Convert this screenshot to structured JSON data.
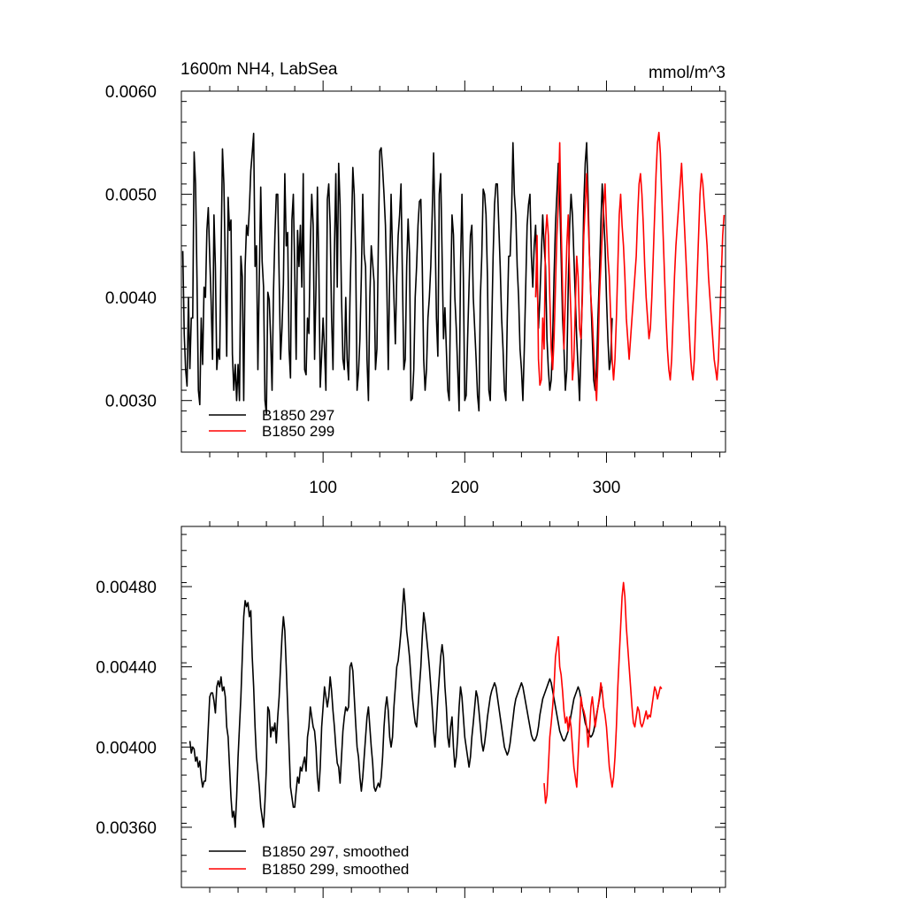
{
  "chart_data": [
    {
      "type": "line",
      "title": "1600m NH4, LabSea",
      "units": "mmol/m^3",
      "xlim": [
        0,
        384
      ],
      "ylim": [
        0.0025,
        0.006
      ],
      "xticks": [
        100,
        200,
        300
      ],
      "xtick_labels": [
        "100",
        "200",
        "300"
      ],
      "yticks": [
        0.003,
        0.004,
        0.005,
        0.006
      ],
      "ytick_labels": [
        "0.0030",
        "0.0040",
        "0.0050",
        "0.0060"
      ],
      "grid": false,
      "legend_position": "bottom-left",
      "series": [
        {
          "name": "B1850 297",
          "color": "#000000",
          "x_start": 1,
          "values": [
            0.00445,
            0.00365,
            0.0033,
            0.00314,
            0.004,
            0.00331,
            0.0038,
            0.0038,
            0.00541,
            0.0051,
            0.0042,
            0.0031,
            0.00296,
            0.0038,
            0.00335,
            0.0041,
            0.004,
            0.00465,
            0.00487,
            0.0044,
            0.00396,
            0.0034,
            0.0048,
            0.0043,
            0.0033,
            0.0035,
            0.0034,
            0.0044,
            0.00544,
            0.0051,
            0.0043,
            0.00343,
            0.00497,
            0.00465,
            0.00475,
            0.00345,
            0.0031,
            0.00335,
            0.003,
            0.00335,
            0.003,
            0.0044,
            0.0042,
            0.003,
            0.0043,
            0.0047,
            0.0046,
            0.00487,
            0.00523,
            0.0054,
            0.00559,
            0.0043,
            0.0045,
            0.0033,
            0.0042,
            0.00507,
            0.00435,
            0.0041,
            0.003,
            0.00287,
            0.00405,
            0.00398,
            0.0036,
            0.0031,
            0.00405,
            0.0046,
            0.005,
            0.005,
            0.0042,
            0.0034,
            0.0037,
            0.00413,
            0.0052,
            0.0045,
            0.00463,
            0.0035,
            0.00322,
            0.00475,
            0.005,
            0.00425,
            0.0034,
            0.00465,
            0.0043,
            0.0047,
            0.0041,
            0.0052,
            0.0033,
            0.00325,
            0.0038,
            0.00365,
            0.00451,
            0.005,
            0.0047,
            0.0034,
            0.0041,
            0.00507,
            0.0043,
            0.00313,
            0.00344,
            0.0038,
            0.0035,
            0.0031,
            0.00495,
            0.0051,
            0.0047,
            0.0038,
            0.0033,
            0.00445,
            0.0052,
            0.0041,
            0.0053,
            0.0049,
            0.004,
            0.0034,
            0.0033,
            0.004,
            0.0034,
            0.0032,
            0.004,
            0.0046,
            0.00526,
            0.005,
            0.0044,
            0.0031,
            0.00327,
            0.0036,
            0.0042,
            0.005,
            0.00442,
            0.0043,
            0.0034,
            0.003,
            0.004,
            0.0045,
            0.00433,
            0.00415,
            0.0033,
            0.0035,
            0.00452,
            0.00542,
            0.00545,
            0.00525,
            0.005,
            0.0047,
            0.0041,
            0.0033,
            0.0042,
            0.005,
            0.00443,
            0.004,
            0.00355,
            0.0042,
            0.0046,
            0.0048,
            0.0051,
            0.0042,
            0.0033,
            0.0034,
            0.0043,
            0.00476,
            0.00443,
            0.003,
            0.00302,
            0.0033,
            0.004,
            0.0043,
            0.0047,
            0.00493,
            0.00495,
            0.0043,
            0.0034,
            0.0031,
            0.0033,
            0.0038,
            0.004,
            0.0043,
            0.0048,
            0.0054,
            0.0047,
            0.0038,
            0.00343,
            0.005,
            0.0052,
            0.0044,
            0.0036,
            0.0039,
            0.0035,
            0.0031,
            0.003,
            0.004,
            0.0048,
            0.00461,
            0.004,
            0.0037,
            0.0033,
            0.0029,
            0.0043,
            0.005,
            0.0042,
            0.003,
            0.00305,
            0.0036,
            0.0041,
            0.0046,
            0.0047,
            0.004,
            0.0037,
            0.0034,
            0.00305,
            0.0029,
            0.004,
            0.0044,
            0.00505,
            0.005,
            0.0048,
            0.0042,
            0.0031,
            0.003,
            0.0037,
            0.0044,
            0.0049,
            0.0051,
            0.0051,
            0.0047,
            0.0043,
            0.0038,
            0.0035,
            0.0031,
            0.003,
            0.0038,
            0.0044,
            0.0044,
            0.0048,
            0.0055,
            0.005,
            0.0048,
            0.0043,
            0.004,
            0.0035,
            0.0033,
            0.003,
            0.0035,
            0.0041,
            0.0047,
            0.0049,
            0.005,
            0.0044,
            0.0041,
            0.0045,
            0.0047,
            0.0042,
            0.0037,
            0.004,
            0.0044,
            0.0048,
            0.0045,
            0.0043,
            0.0036,
            0.0033,
            0.0031,
            0.0032,
            0.0036,
            0.0042,
            0.0047,
            0.005,
            0.0053,
            0.005,
            0.0044,
            0.0038,
            0.0035,
            0.0031,
            0.0033,
            0.0041,
            0.0047,
            0.005,
            0.0048,
            0.0044,
            0.004,
            0.0036,
            0.0033,
            0.003,
            0.0035,
            0.0041,
            0.0049,
            0.0053,
            0.0055,
            0.005,
            0.0044,
            0.004,
            0.0036,
            0.0032,
            0.0031,
            0.0033,
            0.0038,
            0.0042,
            0.0047,
            0.0051,
            0.0048,
            0.0045,
            0.004,
            0.0036,
            0.0033,
            0.0034,
            0.0038
          ]
        },
        {
          "name": "B1850 299",
          "color": "#ff0000",
          "x_start": 250,
          "values": [
            0.004,
            0.0046,
            0.0034,
            0.00315,
            0.0032,
            0.0038,
            0.0035,
            0.0046,
            0.0048,
            0.0046,
            0.004,
            0.0035,
            0.0033,
            0.0036,
            0.0041,
            0.0046,
            0.0049,
            0.0055,
            0.0047,
            0.0041,
            0.0035,
            0.004,
            0.0045,
            0.0048,
            0.0042,
            0.0038,
            0.0032,
            0.0034,
            0.0039,
            0.0044,
            0.0042,
            0.0037,
            0.0036,
            0.004,
            0.0046,
            0.0049,
            0.0052,
            0.0048,
            0.0044,
            0.004,
            0.0038,
            0.0035,
            0.0032,
            0.003,
            0.0034,
            0.004,
            0.0043,
            0.0046,
            0.0049,
            0.0051,
            0.0047,
            0.0044,
            0.0042,
            0.0038,
            0.0034,
            0.0032,
            0.0034,
            0.0038,
            0.0043,
            0.0048,
            0.005,
            0.0047,
            0.0045,
            0.0042,
            0.0038,
            0.0036,
            0.0034,
            0.0036,
            0.0038,
            0.004,
            0.0042,
            0.0044,
            0.0048,
            0.0051,
            0.0052,
            0.005,
            0.0047,
            0.0043,
            0.004,
            0.0038,
            0.0036,
            0.0037,
            0.004,
            0.0044,
            0.0048,
            0.0052,
            0.0055,
            0.0056,
            0.0054,
            0.005,
            0.0046,
            0.0042,
            0.0038,
            0.0035,
            0.0033,
            0.0032,
            0.0034,
            0.0038,
            0.0042,
            0.0045,
            0.0047,
            0.0049,
            0.0051,
            0.0053,
            0.005,
            0.0047,
            0.0044,
            0.0041,
            0.0038,
            0.0035,
            0.0033,
            0.0032,
            0.0034,
            0.0038,
            0.0042,
            0.0046,
            0.005,
            0.0052,
            0.0051,
            0.0049,
            0.0047,
            0.0045,
            0.0042,
            0.004,
            0.0038,
            0.0036,
            0.0034,
            0.0033,
            0.0032,
            0.0034,
            0.0038,
            0.0042,
            0.0046,
            0.0048
          ]
        }
      ]
    },
    {
      "type": "line",
      "title": "",
      "units": "",
      "xlim": [
        0,
        384
      ],
      "ylim": [
        0.0033,
        0.0051
      ],
      "xticks": [
        100,
        200,
        300
      ],
      "xtick_labels": [],
      "yticks": [
        0.0036,
        0.004,
        0.0044,
        0.0048
      ],
      "ytick_labels": [
        "0.00360",
        "0.00400",
        "0.00440",
        "0.00480"
      ],
      "grid": false,
      "legend_position": "bottom-left",
      "series": [
        {
          "name": "B1850 297, smoothed",
          "color": "#000000",
          "x_start": 6,
          "values": [
            0.00403,
            0.00397,
            0.004,
            0.00399,
            0.00393,
            0.00395,
            0.0039,
            0.00393,
            0.00385,
            0.0038,
            0.00383,
            0.00383,
            0.00395,
            0.0041,
            0.00425,
            0.00427,
            0.00427,
            0.00423,
            0.00417,
            0.0043,
            0.00433,
            0.0043,
            0.00435,
            0.00428,
            0.0043,
            0.00425,
            0.0041,
            0.00405,
            0.0039,
            0.00375,
            0.00365,
            0.00368,
            0.0036,
            0.00375,
            0.00395,
            0.0041,
            0.00425,
            0.00445,
            0.00465,
            0.00473,
            0.0047,
            0.00472,
            0.00465,
            0.00468,
            0.00445,
            0.0043,
            0.0041,
            0.00395,
            0.00388,
            0.0038,
            0.0037,
            0.00365,
            0.0036,
            0.00373,
            0.0039,
            0.0042,
            0.00418,
            0.00405,
            0.0041,
            0.00408,
            0.00412,
            0.00402,
            0.00415,
            0.00425,
            0.0044,
            0.00455,
            0.00465,
            0.00458,
            0.0044,
            0.0042,
            0.004,
            0.0038,
            0.00375,
            0.0037,
            0.0037,
            0.00378,
            0.00385,
            0.00382,
            0.0039,
            0.00388,
            0.00392,
            0.00395,
            0.00388,
            0.00405,
            0.0041,
            0.0042,
            0.00415,
            0.0041,
            0.00408,
            0.004,
            0.00385,
            0.00378,
            0.0039,
            0.0041,
            0.0042,
            0.0043,
            0.00425,
            0.0042,
            0.00425,
            0.00435,
            0.00428,
            0.00418,
            0.0041,
            0.004,
            0.00392,
            0.0039,
            0.00382,
            0.00395,
            0.00408,
            0.00415,
            0.0042,
            0.00418,
            0.0042,
            0.0044,
            0.00442,
            0.00438,
            0.00425,
            0.00412,
            0.004,
            0.00395,
            0.00385,
            0.00378,
            0.00385,
            0.00395,
            0.00405,
            0.00415,
            0.0042,
            0.0041,
            0.004,
            0.00392,
            0.0038,
            0.00378,
            0.0038,
            0.00382,
            0.0038,
            0.00385,
            0.00395,
            0.0041,
            0.0042,
            0.00425,
            0.00418,
            0.00405,
            0.004,
            0.00405,
            0.0042,
            0.0043,
            0.0044,
            0.00443,
            0.0045,
            0.00458,
            0.00468,
            0.00479,
            0.0047,
            0.00458,
            0.00452,
            0.00445,
            0.00435,
            0.00425,
            0.00418,
            0.00412,
            0.0041,
            0.0042,
            0.0043,
            0.0044,
            0.00455,
            0.00467,
            0.00462,
            0.00455,
            0.00448,
            0.0044,
            0.0043,
            0.0042,
            0.00408,
            0.004,
            0.00412,
            0.00425,
            0.00435,
            0.00445,
            0.00451,
            0.00445,
            0.0043,
            0.0042,
            0.00405,
            0.004,
            0.0041,
            0.00415,
            0.004,
            0.0039,
            0.00395,
            0.00405,
            0.0042,
            0.0043,
            0.00425,
            0.00415,
            0.00405,
            0.004,
            0.00395,
            0.0039,
            0.00395,
            0.00405,
            0.00412,
            0.0042,
            0.00428,
            0.00425,
            0.00418,
            0.0041,
            0.00402,
            0.00398,
            0.00402,
            0.00408,
            0.00415,
            0.0042,
            0.00425,
            0.00428,
            0.0043,
            0.00432,
            0.0043,
            0.00425,
            0.0042,
            0.00415,
            0.0041,
            0.00405,
            0.004,
            0.00398,
            0.00396,
            0.00398,
            0.00402,
            0.00408,
            0.00414,
            0.0042,
            0.00424,
            0.00426,
            0.00428,
            0.0043,
            0.00432,
            0.0043,
            0.00426,
            0.00422,
            0.00418,
            0.00414,
            0.0041,
            0.00406,
            0.00404,
            0.00403,
            0.00404,
            0.00406,
            0.0041,
            0.00416,
            0.0042,
            0.00424,
            0.00426,
            0.00428,
            0.0043,
            0.00432,
            0.00434,
            0.00432,
            0.00428,
            0.00424,
            0.0042,
            0.00416,
            0.00412,
            0.00408,
            0.00406,
            0.00404,
            0.00403,
            0.00404,
            0.00406,
            0.00408,
            0.00412,
            0.00416,
            0.0042,
            0.00424,
            0.00426,
            0.00428,
            0.0043,
            0.00428,
            0.00424,
            0.0042,
            0.00416,
            0.00412,
            0.0041,
            0.00408,
            0.00406,
            0.00405,
            0.00406,
            0.00408,
            0.00412,
            0.00416,
            0.0042,
            0.00424,
            0.00428,
            0.0043
          ]
        },
        {
          "name": "B1850 299, smoothed",
          "color": "#ff0000",
          "x_start": 256,
          "values": [
            0.00382,
            0.00372,
            0.00376,
            0.0039,
            0.00405,
            0.00412,
            0.0042,
            0.0043,
            0.00445,
            0.0045,
            0.00455,
            0.0044,
            0.00436,
            0.00428,
            0.00418,
            0.00412,
            0.00415,
            0.00408,
            0.00415,
            0.0041,
            0.004,
            0.0039,
            0.00385,
            0.0038,
            0.00395,
            0.0041,
            0.00425,
            0.0042,
            0.00418,
            0.00415,
            0.0041,
            0.004,
            0.00408,
            0.0042,
            0.00425,
            0.00418,
            0.0041,
            0.00415,
            0.0042,
            0.00425,
            0.00432,
            0.00428,
            0.0042,
            0.00416,
            0.0041,
            0.004,
            0.0039,
            0.00385,
            0.0038,
            0.00385,
            0.00395,
            0.0041,
            0.0043,
            0.00445,
            0.0046,
            0.00475,
            0.00482,
            0.00475,
            0.0046,
            0.0045,
            0.0044,
            0.0043,
            0.0042,
            0.00412,
            0.0041,
            0.00415,
            0.0042,
            0.00418,
            0.00412,
            0.0041,
            0.00412,
            0.00415,
            0.00418,
            0.00414,
            0.00416,
            0.00415,
            0.0042,
            0.00425,
            0.0043,
            0.00428,
            0.00424,
            0.00427,
            0.0043,
            0.00429
          ]
        }
      ]
    }
  ]
}
